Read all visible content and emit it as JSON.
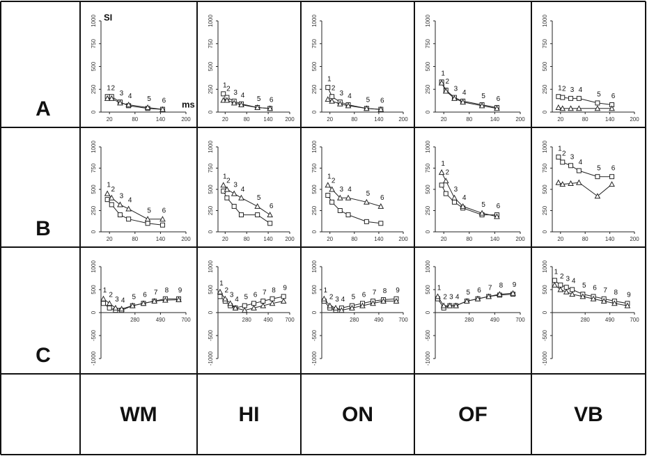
{
  "row_labels": [
    "A",
    "B",
    "C"
  ],
  "column_labels": [
    "WM",
    "HI",
    "ON",
    "OF",
    "VB"
  ],
  "chart_data": [
    {
      "type": "scatter",
      "y_label": "SI",
      "x_label": "ms",
      "x": [
        15,
        25,
        45,
        65,
        110,
        145
      ],
      "point_labels": [
        "1",
        "2",
        "3",
        "4",
        "5",
        "6"
      ],
      "xlim": [
        0,
        200
      ],
      "xticks": [
        20,
        80,
        140,
        200
      ],
      "ylim": [
        0,
        1000
      ],
      "yticks": [
        0,
        250,
        500,
        750,
        1000
      ],
      "fit_lines": true,
      "series": [
        {
          "marker": "square",
          "color": "#222",
          "values": [
            170,
            170,
            110,
            70,
            40,
            30
          ]
        },
        {
          "marker": "triangle",
          "color": "#222",
          "values": [
            150,
            150,
            100,
            80,
            50,
            30
          ]
        }
      ]
    },
    {
      "type": "scatter",
      "x": [
        15,
        25,
        45,
        65,
        110,
        145
      ],
      "point_labels": [
        "1",
        "2",
        "3",
        "4",
        "5",
        "6"
      ],
      "xlim": [
        0,
        200
      ],
      "xticks": [
        20,
        80,
        140,
        200
      ],
      "ylim": [
        0,
        1000
      ],
      "yticks": [
        0,
        250,
        500,
        750,
        1000
      ],
      "fit_lines": true,
      "series": [
        {
          "marker": "square",
          "color": "#222",
          "values": [
            200,
            160,
            120,
            90,
            50,
            40
          ]
        },
        {
          "marker": "triangle",
          "color": "#222",
          "values": [
            130,
            130,
            100,
            80,
            50,
            40
          ]
        }
      ]
    },
    {
      "type": "scatter",
      "x": [
        15,
        25,
        45,
        65,
        110,
        145
      ],
      "point_labels": [
        "1",
        "2",
        "3",
        "4",
        "5",
        "6"
      ],
      "xlim": [
        0,
        200
      ],
      "xticks": [
        20,
        80,
        140,
        200
      ],
      "ylim": [
        0,
        1000
      ],
      "yticks": [
        0,
        250,
        500,
        750,
        1000
      ],
      "fit_lines": true,
      "series": [
        {
          "marker": "square",
          "color": "#222",
          "values": [
            270,
            170,
            110,
            80,
            40,
            30
          ]
        },
        {
          "marker": "triangle",
          "color": "#222",
          "values": [
            140,
            120,
            90,
            70,
            40,
            30
          ]
        }
      ]
    },
    {
      "type": "scatter",
      "x": [
        15,
        25,
        45,
        65,
        110,
        145
      ],
      "point_labels": [
        "1",
        "2",
        "3",
        "4",
        "5",
        "6"
      ],
      "xlim": [
        0,
        200
      ],
      "xticks": [
        20,
        80,
        140,
        200
      ],
      "ylim": [
        0,
        1000
      ],
      "yticks": [
        0,
        250,
        500,
        750,
        1000
      ],
      "fit_lines": true,
      "series": [
        {
          "marker": "square",
          "color": "#222",
          "values": [
            330,
            240,
            160,
            120,
            80,
            50
          ]
        },
        {
          "marker": "triangle",
          "color": "#222",
          "values": [
            320,
            230,
            150,
            110,
            70,
            40
          ]
        }
      ]
    },
    {
      "type": "scatter",
      "x": [
        15,
        25,
        45,
        65,
        110,
        145
      ],
      "point_labels": [
        "1",
        "2",
        "3",
        "4",
        "5",
        "6"
      ],
      "xlim": [
        0,
        200
      ],
      "xticks": [
        20,
        80,
        140,
        200
      ],
      "ylim": [
        0,
        1000
      ],
      "yticks": [
        0,
        250,
        500,
        750,
        1000
      ],
      "fit_lines": true,
      "series": [
        {
          "marker": "square",
          "color": "#222",
          "values": [
            170,
            160,
            150,
            150,
            100,
            80
          ]
        },
        {
          "marker": "triangle",
          "color": "#222",
          "values": [
            50,
            40,
            40,
            40,
            40,
            40
          ]
        }
      ]
    },
    {
      "type": "scatter",
      "x": [
        15,
        25,
        45,
        65,
        110,
        145
      ],
      "point_labels": [
        "1",
        "2",
        "3",
        "4",
        "5",
        "6"
      ],
      "xlim": [
        0,
        200
      ],
      "xticks": [
        20,
        80,
        140,
        200
      ],
      "ylim": [
        0,
        1000
      ],
      "yticks": [
        0,
        250,
        500,
        750,
        1000
      ],
      "fit_lines": true,
      "series": [
        {
          "marker": "square",
          "color": "#222",
          "values": [
            380,
            320,
            200,
            150,
            100,
            80
          ]
        },
        {
          "marker": "triangle",
          "color": "#222",
          "values": [
            450,
            400,
            320,
            270,
            150,
            150
          ]
        }
      ]
    },
    {
      "type": "scatter",
      "x": [
        15,
        25,
        45,
        65,
        110,
        145
      ],
      "point_labels": [
        "1",
        "2",
        "3",
        "4",
        "5",
        "6"
      ],
      "xlim": [
        0,
        200
      ],
      "xticks": [
        20,
        80,
        140,
        200
      ],
      "ylim": [
        0,
        1000
      ],
      "yticks": [
        0,
        250,
        500,
        750,
        1000
      ],
      "fit_lines": true,
      "series": [
        {
          "marker": "square",
          "color": "#222",
          "values": [
            480,
            400,
            300,
            200,
            200,
            100
          ]
        },
        {
          "marker": "triangle",
          "color": "#222",
          "values": [
            550,
            500,
            450,
            400,
            300,
            200
          ]
        }
      ]
    },
    {
      "type": "scatter",
      "x": [
        15,
        25,
        45,
        65,
        110,
        145
      ],
      "point_labels": [
        "1",
        "2",
        "3",
        "4",
        "5",
        "6"
      ],
      "xlim": [
        0,
        200
      ],
      "xticks": [
        20,
        80,
        140,
        200
      ],
      "ylim": [
        0,
        1000
      ],
      "yticks": [
        0,
        250,
        500,
        750,
        1000
      ],
      "fit_lines": true,
      "series": [
        {
          "marker": "square",
          "color": "#222",
          "values": [
            430,
            350,
            250,
            200,
            120,
            100
          ]
        },
        {
          "marker": "triangle",
          "color": "#222",
          "values": [
            550,
            500,
            400,
            400,
            350,
            300
          ]
        }
      ]
    },
    {
      "type": "scatter",
      "x": [
        15,
        25,
        45,
        65,
        110,
        145
      ],
      "point_labels": [
        "1",
        "2",
        "3",
        "4",
        "5",
        "6"
      ],
      "xlim": [
        0,
        200
      ],
      "xticks": [
        20,
        80,
        140,
        200
      ],
      "ylim": [
        0,
        1000
      ],
      "yticks": [
        0,
        250,
        500,
        750,
        1000
      ],
      "fit_lines": true,
      "series": [
        {
          "marker": "square",
          "color": "#222",
          "values": [
            550,
            450,
            350,
            280,
            200,
            200
          ]
        },
        {
          "marker": "triangle",
          "color": "#222",
          "values": [
            700,
            600,
            400,
            300,
            220,
            180
          ]
        }
      ]
    },
    {
      "type": "scatter",
      "x": [
        15,
        25,
        45,
        65,
        110,
        145
      ],
      "point_labels": [
        "1",
        "2",
        "3",
        "4",
        "5",
        "6"
      ],
      "xlim": [
        0,
        200
      ],
      "xticks": [
        20,
        80,
        140,
        200
      ],
      "ylim": [
        0,
        1000
      ],
      "yticks": [
        0,
        250,
        500,
        750,
        1000
      ],
      "fit_lines": true,
      "series": [
        {
          "marker": "square",
          "color": "#222",
          "values": [
            880,
            820,
            780,
            720,
            650,
            650
          ]
        },
        {
          "marker": "triangle",
          "color": "#222",
          "values": [
            580,
            560,
            570,
            580,
            420,
            560
          ]
        }
      ]
    },
    {
      "type": "scatter",
      "x": [
        20,
        70,
        120,
        170,
        260,
        350,
        440,
        530,
        640
      ],
      "point_labels": [
        "1",
        "2",
        "3",
        "4",
        "5",
        "6",
        "7",
        "8",
        "9"
      ],
      "xlim": [
        0,
        700
      ],
      "xticks": [
        280,
        490,
        700
      ],
      "ylim": [
        -1000,
        1000
      ],
      "yticks": [
        -1000,
        -500,
        0,
        500,
        1000
      ],
      "fit_lines": true,
      "series": [
        {
          "marker": "square",
          "color": "#222",
          "values": [
            200,
            100,
            50,
            50,
            150,
            200,
            250,
            300,
            300
          ]
        },
        {
          "marker": "triangle",
          "color": "#222",
          "values": [
            300,
            200,
            100,
            80,
            150,
            200,
            250,
            270,
            280
          ]
        }
      ]
    },
    {
      "type": "scatter",
      "x": [
        20,
        70,
        120,
        170,
        260,
        350,
        440,
        530,
        640
      ],
      "point_labels": [
        "1",
        "2",
        "3",
        "4",
        "5",
        "6",
        "7",
        "8",
        "9"
      ],
      "xlim": [
        0,
        700
      ],
      "xticks": [
        280,
        490,
        700
      ],
      "ylim": [
        -1000,
        1000
      ],
      "yticks": [
        -1000,
        -500,
        0,
        500,
        1000
      ],
      "fit_lines": true,
      "series": [
        {
          "marker": "square",
          "color": "#222",
          "values": [
            350,
            250,
            150,
            100,
            150,
            200,
            250,
            300,
            350
          ]
        },
        {
          "marker": "triangle",
          "color": "#222",
          "values": [
            450,
            300,
            200,
            100,
            50,
            100,
            150,
            200,
            250
          ]
        }
      ]
    },
    {
      "type": "scatter",
      "x": [
        20,
        70,
        120,
        170,
        260,
        350,
        440,
        530,
        640
      ],
      "point_labels": [
        "1",
        "2",
        "3",
        "4",
        "5",
        "6",
        "7",
        "8",
        "9"
      ],
      "xlim": [
        0,
        700
      ],
      "xticks": [
        280,
        490,
        700
      ],
      "ylim": [
        -1000,
        1000
      ],
      "yticks": [
        -1000,
        -500,
        0,
        500,
        1000
      ],
      "fit_lines": true,
      "series": [
        {
          "marker": "square",
          "color": "#222",
          "values": [
            250,
            100,
            50,
            100,
            150,
            200,
            250,
            280,
            300
          ]
        },
        {
          "marker": "triangle",
          "color": "#222",
          "values": [
            300,
            150,
            100,
            50,
            100,
            150,
            200,
            250,
            250
          ]
        }
      ]
    },
    {
      "type": "scatter",
      "x": [
        20,
        70,
        120,
        170,
        260,
        350,
        440,
        530,
        640
      ],
      "point_labels": [
        "1",
        "2",
        "3",
        "4",
        "5",
        "6",
        "7",
        "8",
        "9"
      ],
      "xlim": [
        0,
        700
      ],
      "xticks": [
        280,
        490,
        700
      ],
      "ylim": [
        -1000,
        1000
      ],
      "yticks": [
        -1000,
        -500,
        0,
        500,
        1000
      ],
      "fit_lines": true,
      "series": [
        {
          "marker": "square",
          "color": "#222",
          "values": [
            300,
            100,
            150,
            150,
            250,
            300,
            350,
            380,
            400
          ]
        },
        {
          "marker": "triangle",
          "color": "#222",
          "values": [
            350,
            150,
            150,
            150,
            250,
            300,
            350,
            400,
            420
          ]
        }
      ]
    },
    {
      "type": "scatter",
      "x": [
        20,
        70,
        120,
        170,
        260,
        350,
        440,
        530,
        640
      ],
      "point_labels": [
        "1",
        "2",
        "3",
        "4",
        "5",
        "6",
        "7",
        "8",
        "9"
      ],
      "xlim": [
        0,
        700
      ],
      "xticks": [
        280,
        490,
        700
      ],
      "ylim": [
        -1000,
        1000
      ],
      "yticks": [
        -1000,
        -500,
        0,
        500,
        1000
      ],
      "fit_lines": true,
      "series": [
        {
          "marker": "square",
          "color": "#222",
          "values": [
            700,
            600,
            550,
            500,
            400,
            350,
            300,
            250,
            200
          ]
        },
        {
          "marker": "triangle",
          "color": "#222",
          "values": [
            600,
            500,
            450,
            400,
            350,
            300,
            250,
            200,
            150
          ]
        }
      ]
    }
  ]
}
